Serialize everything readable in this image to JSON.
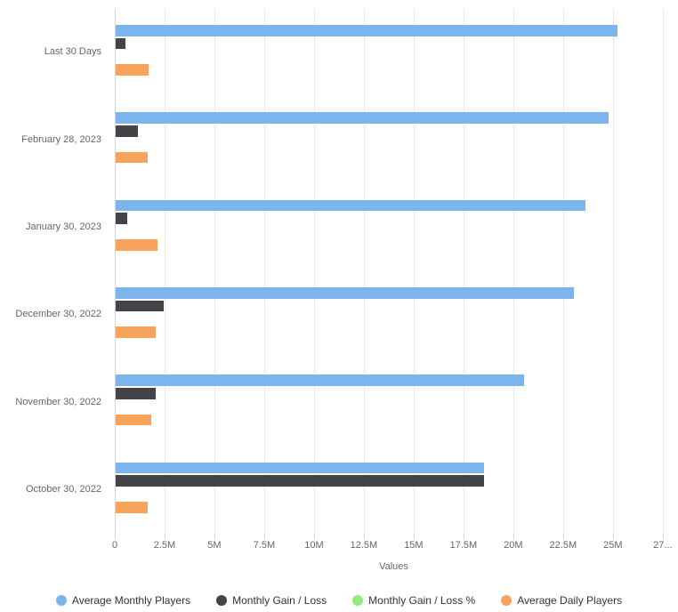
{
  "chart_data": {
    "type": "bar",
    "orientation": "horizontal",
    "title": "",
    "xlabel": "Values",
    "ylabel": "",
    "categories": [
      "Last 30 Days",
      "February 28, 2023",
      "January 30, 2023",
      "December 30, 2022",
      "November 30, 2022",
      "October 30, 2022"
    ],
    "series": [
      {
        "name": "Average Monthly Players",
        "color": "#7cb5ec",
        "values": [
          25200000,
          24750000,
          23600000,
          23000000,
          20500000,
          18500000
        ]
      },
      {
        "name": "Monthly Gain / Loss",
        "color": "#434348",
        "values": [
          500000,
          1100000,
          600000,
          2400000,
          2000000,
          18500000
        ]
      },
      {
        "name": "Monthly Gain / Loss %",
        "color": "#90ed7d",
        "values": [
          0,
          0,
          0,
          0,
          0,
          0
        ]
      },
      {
        "name": "Average Daily Players",
        "color": "#f7a35c",
        "values": [
          1650000,
          1600000,
          2100000,
          2000000,
          1800000,
          1600000
        ]
      }
    ],
    "value_axis": {
      "title": "Values",
      "min": 0,
      "max": 28000000,
      "tick_interval": 2500000,
      "tick_labels": [
        "0",
        "2.5M",
        "5M",
        "7.5M",
        "10M",
        "12.5M",
        "15M",
        "17.5M",
        "20M",
        "22.5M",
        "25M",
        "27..."
      ]
    },
    "legend": {
      "position": "bottom",
      "items": [
        "Average Monthly Players",
        "Monthly Gain / Loss",
        "Monthly Gain / Loss %",
        "Average Daily Players"
      ]
    },
    "grid": true,
    "styles": {
      "background": "#ffffff",
      "gridline_color": "#e6e6e6",
      "axis_line_color": "#ccd6eb",
      "tick_color": "#ccd6eb",
      "axis_label_color": "#666666",
      "legend_text_color": "#333333"
    }
  }
}
